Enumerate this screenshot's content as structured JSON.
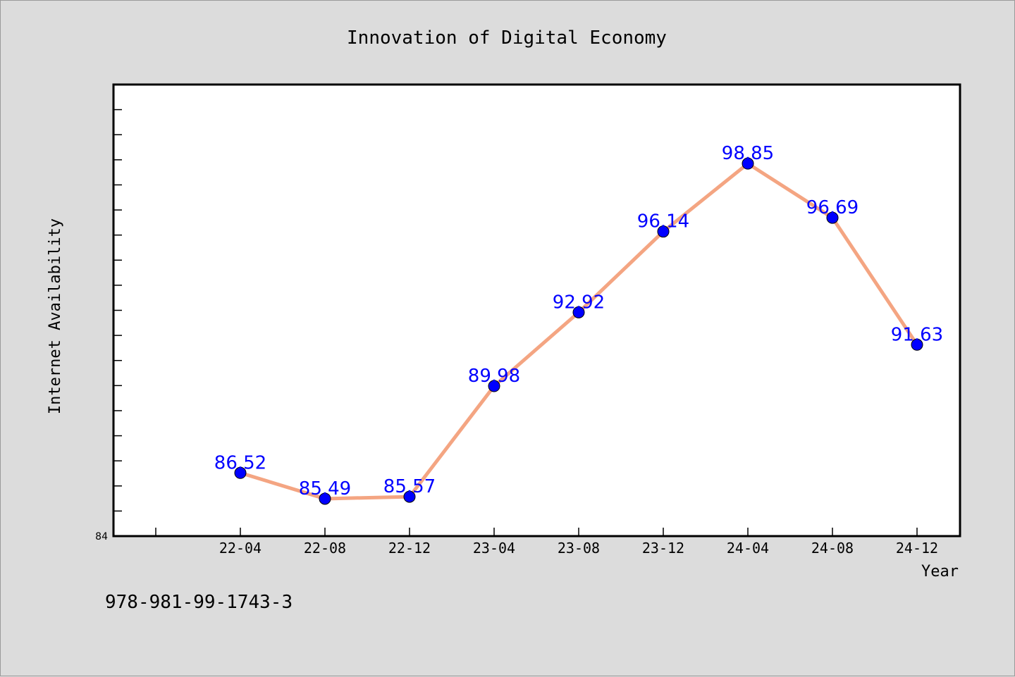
{
  "chart_data": {
    "type": "line",
    "title": "Innovation of Digital Economy",
    "xlabel": "Year",
    "ylabel": "Internet Availability",
    "categories": [
      "22-04",
      "22-08",
      "22-12",
      "23-04",
      "23-08",
      "23-12",
      "24-04",
      "24-08",
      "24-12"
    ],
    "series": [
      {
        "values": [
          86.52,
          85.49,
          85.57,
          89.98,
          92.92,
          96.14,
          98.85,
          96.69,
          91.63
        ],
        "labels": [
          "86.52",
          "85.49",
          "85.57",
          "89.98",
          "92.92",
          "96.14",
          "98.85",
          "96.69",
          "91.63"
        ],
        "line_color": "#f4a582",
        "marker_color": "#0000ff"
      }
    ],
    "ylim": [
      84,
      102
    ],
    "y_tick_labels": [
      "84"
    ],
    "grid": false,
    "legend": "none"
  },
  "footer": {
    "isbn": "978-981-99-1743-3"
  },
  "colors": {
    "background": "#dcdcdc",
    "plot_background": "#ffffff",
    "data_label": "#0000ff"
  }
}
